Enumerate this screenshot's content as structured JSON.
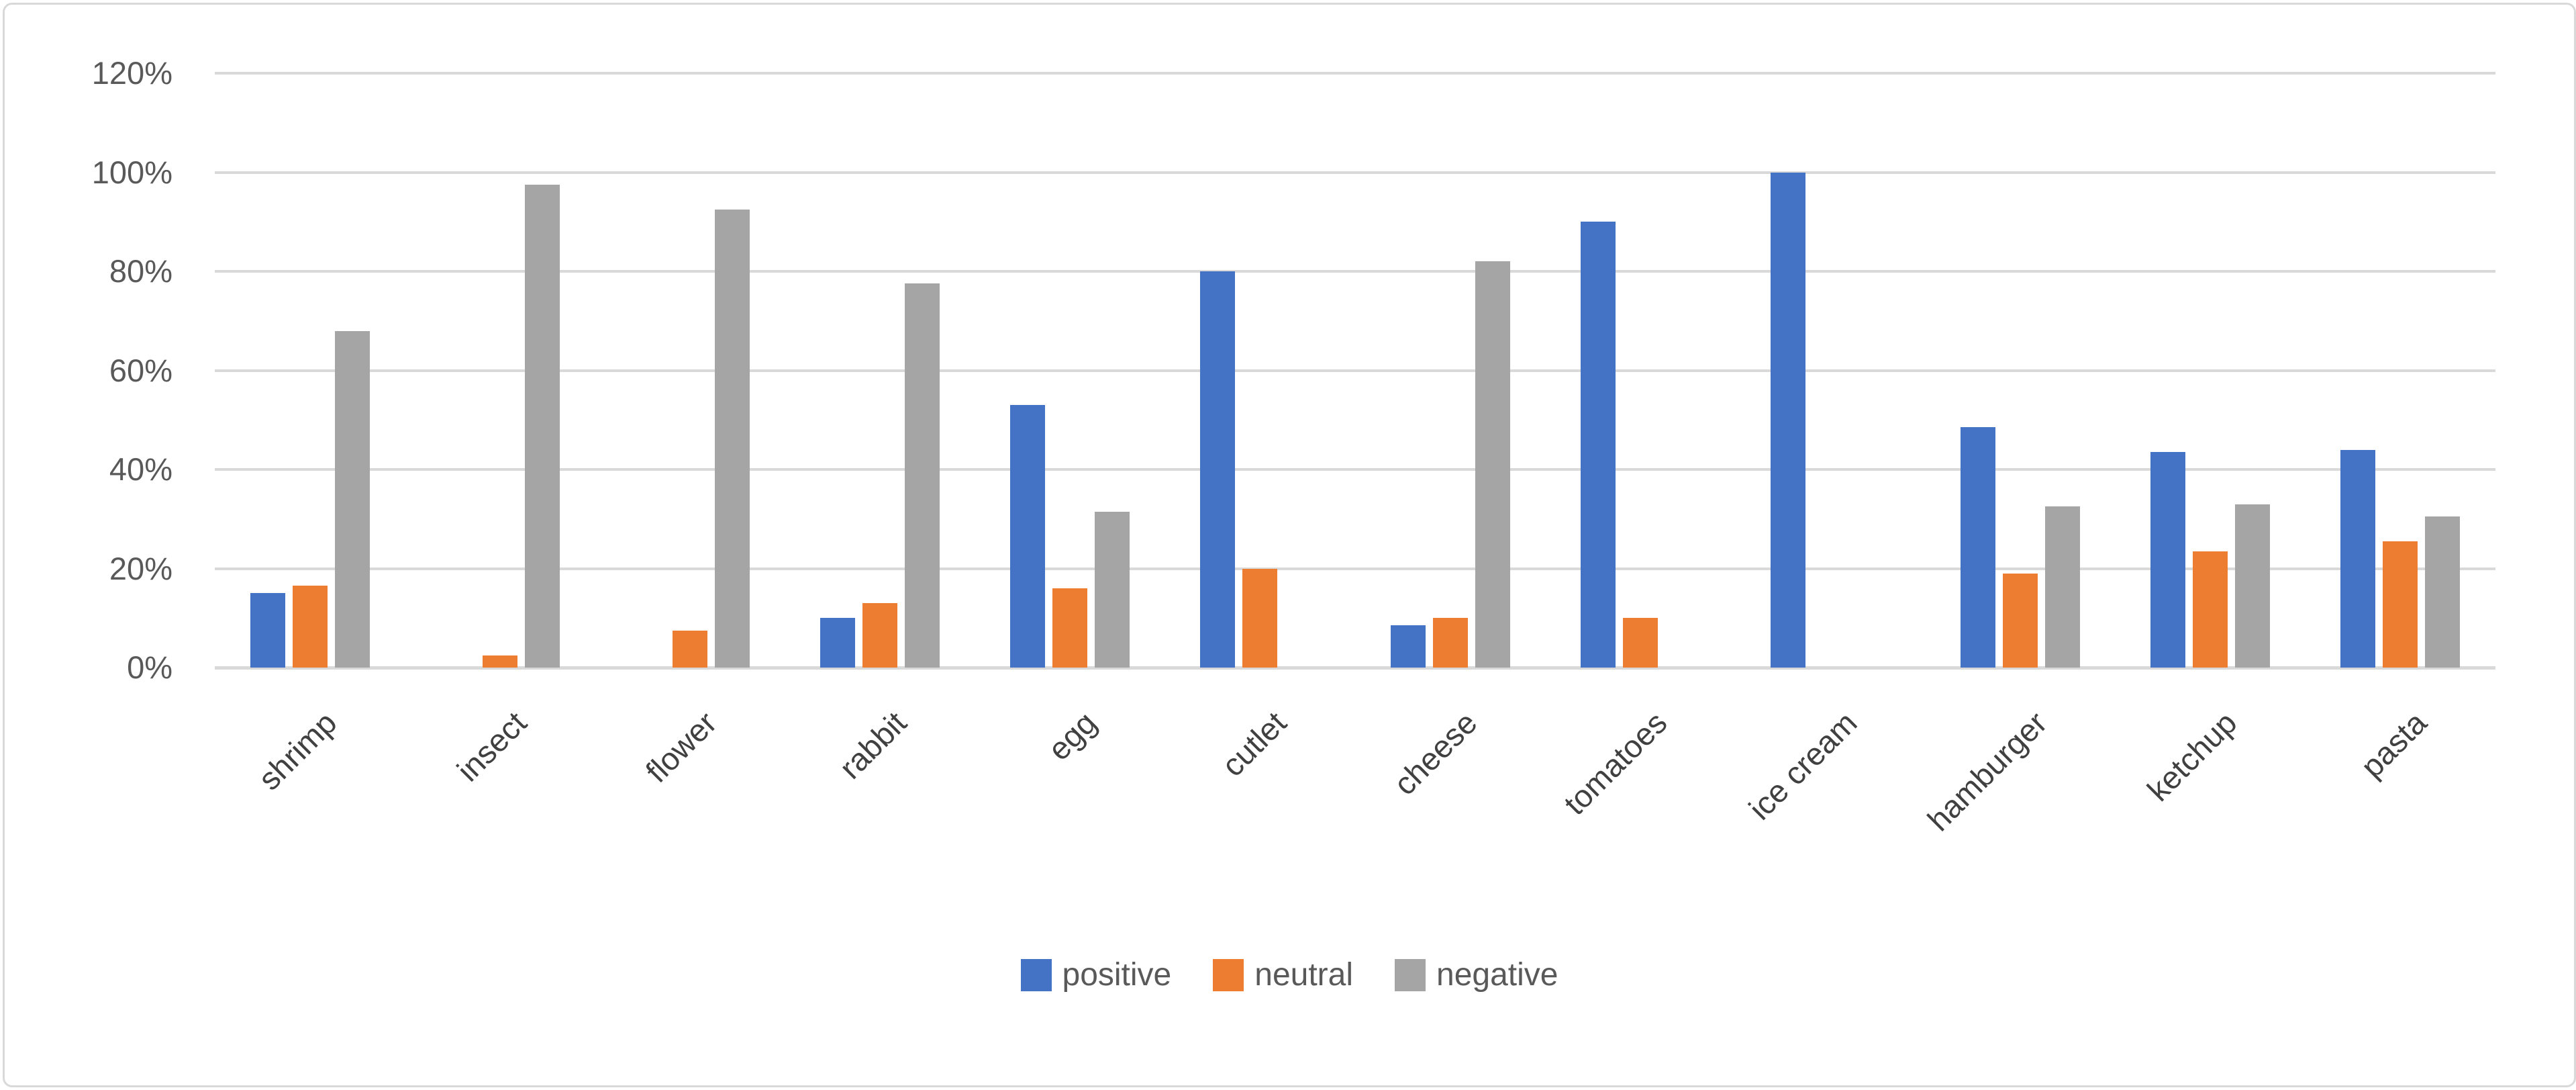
{
  "chart_data": {
    "type": "bar",
    "title": "",
    "xlabel": "",
    "ylabel": "",
    "categories": [
      "shrimp",
      "insect",
      "flower",
      "rabbit",
      "egg",
      "cutlet",
      "cheese",
      "tomatoes",
      "ice cream",
      "hamburger",
      "ketchup",
      "pasta"
    ],
    "series": [
      {
        "name": "positive",
        "color": "#4472C4",
        "values": [
          15,
          0,
          0,
          10,
          53,
          80,
          8.5,
          90,
          100,
          48.5,
          43.5,
          44
        ]
      },
      {
        "name": "neutral",
        "color": "#ED7D31",
        "values": [
          16.5,
          2.5,
          7.5,
          13,
          16,
          20,
          10,
          10,
          0,
          19,
          23.5,
          25.5
        ]
      },
      {
        "name": "negative",
        "color": "#A5A5A5",
        "values": [
          68,
          97.5,
          92.5,
          77.5,
          31.5,
          0,
          82,
          0,
          0,
          32.5,
          33,
          30.5
        ]
      }
    ],
    "ylim": [
      0,
      120
    ],
    "ytick_step": 20,
    "ytick_labels": [
      "0%",
      "20%",
      "40%",
      "60%",
      "80%",
      "100%",
      "120%"
    ],
    "grid": true,
    "legend_position": "bottom",
    "gridline_color": "#D9D9D9",
    "tick_text_color": "#595959"
  }
}
